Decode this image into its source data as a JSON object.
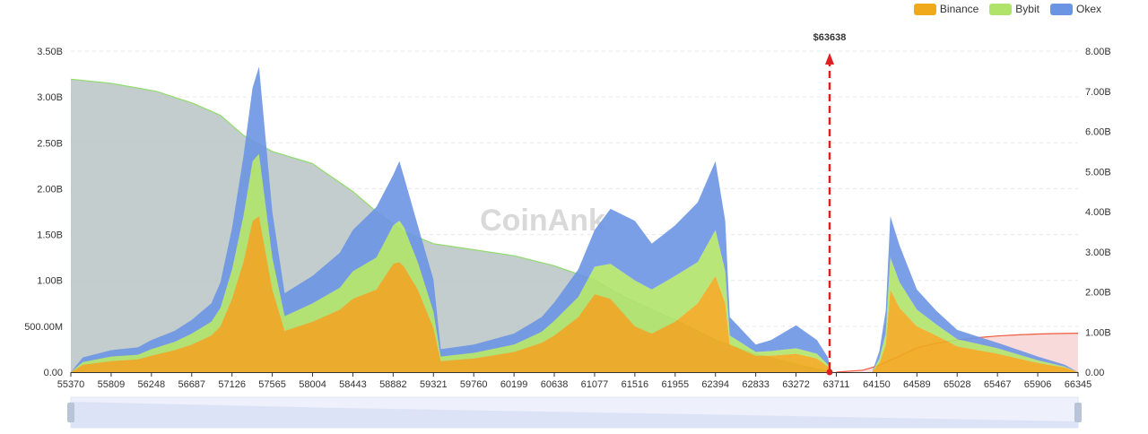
{
  "legend": {
    "items": [
      {
        "label": "Binance",
        "color": "#f0a81c"
      },
      {
        "label": "Bybit",
        "color": "#b0e36a"
      },
      {
        "label": "Okex",
        "color": "#6b95e3"
      }
    ]
  },
  "watermark": "CoinAnk",
  "chart_data": {
    "type": "area",
    "x_tick_labels": [
      "55370",
      "55809",
      "56248",
      "56687",
      "57126",
      "57565",
      "58004",
      "58443",
      "58882",
      "59321",
      "59760",
      "60199",
      "60638",
      "61077",
      "61516",
      "61955",
      "62394",
      "62833",
      "63272",
      "63711",
      "64150",
      "64589",
      "65028",
      "65467",
      "65906",
      "66345"
    ],
    "xlim": [
      55370,
      66345
    ],
    "y_left_ticks": [
      "0.00",
      "500.00M",
      "1.00B",
      "1.50B",
      "2.00B",
      "2.50B",
      "3.00B",
      "3.50B"
    ],
    "y_left_range": [
      0,
      3.5
    ],
    "y_right_ticks": [
      "0.00",
      "1.00B",
      "2.00B",
      "3.00B",
      "4.00B",
      "5.00B",
      "6.00B",
      "7.00B",
      "8.00B"
    ],
    "y_right_range": [
      0,
      8
    ],
    "current_price": 63638,
    "current_price_label": "$63638",
    "series": [
      {
        "name": "Binance",
        "color": "#f0a81c",
        "x": [
          55370,
          55500,
          55809,
          56100,
          56248,
          56500,
          56687,
          56900,
          57000,
          57126,
          57250,
          57350,
          57420,
          57565,
          57700,
          58004,
          58300,
          58443,
          58700,
          58882,
          58950,
          59000,
          59150,
          59321,
          59400,
          59760,
          60199,
          60500,
          60638,
          60900,
          61077,
          61250,
          61516,
          61700,
          61955,
          62200,
          62394,
          62500,
          62550,
          62833,
          63000,
          63272,
          63500,
          63620,
          63650,
          63711,
          64100,
          64180,
          64250,
          64300,
          64400,
          64589,
          64800,
          65028,
          65467,
          65906,
          66200,
          66345
        ],
        "values": [
          0,
          0.08,
          0.12,
          0.14,
          0.18,
          0.24,
          0.3,
          0.4,
          0.5,
          0.8,
          1.2,
          1.65,
          1.7,
          0.9,
          0.45,
          0.55,
          0.68,
          0.8,
          0.9,
          1.18,
          1.2,
          1.15,
          0.9,
          0.48,
          0.12,
          0.15,
          0.22,
          0.32,
          0.4,
          0.6,
          0.85,
          0.8,
          0.5,
          0.42,
          0.55,
          0.75,
          1.05,
          0.75,
          0.3,
          0.18,
          0.18,
          0.2,
          0.15,
          0.06,
          0,
          0,
          0,
          0.1,
          0.3,
          0.9,
          0.7,
          0.5,
          0.4,
          0.28,
          0.2,
          0.1,
          0.05,
          0
        ]
      },
      {
        "name": "Bybit",
        "color": "#b0e36a",
        "x": [
          55370,
          55500,
          55809,
          56100,
          56248,
          56500,
          56687,
          56900,
          57000,
          57126,
          57250,
          57350,
          57420,
          57565,
          57700,
          58004,
          58300,
          58443,
          58700,
          58882,
          58950,
          59000,
          59150,
          59321,
          59400,
          59760,
          60199,
          60500,
          60638,
          60900,
          61077,
          61250,
          61516,
          61700,
          61955,
          62200,
          62394,
          62500,
          62550,
          62833,
          63000,
          63272,
          63500,
          63620,
          63650,
          63711,
          64100,
          64180,
          64250,
          64300,
          64400,
          64589,
          64800,
          65028,
          65467,
          65906,
          66200,
          66345
        ],
        "values": [
          0,
          0.03,
          0.05,
          0.05,
          0.07,
          0.09,
          0.12,
          0.15,
          0.2,
          0.32,
          0.5,
          0.65,
          0.68,
          0.35,
          0.16,
          0.2,
          0.24,
          0.3,
          0.35,
          0.42,
          0.45,
          0.43,
          0.3,
          0.18,
          0.05,
          0.06,
          0.08,
          0.12,
          0.16,
          0.22,
          0.3,
          0.38,
          0.5,
          0.48,
          0.5,
          0.45,
          0.5,
          0.35,
          0.1,
          0.04,
          0.05,
          0.06,
          0.05,
          0.02,
          0,
          0,
          0,
          0.05,
          0.12,
          0.35,
          0.28,
          0.18,
          0.12,
          0.08,
          0.06,
          0.03,
          0.01,
          0
        ]
      },
      {
        "name": "Okex",
        "color": "#6b95e3",
        "x": [
          55370,
          55500,
          55809,
          56100,
          56248,
          56500,
          56687,
          56900,
          57000,
          57126,
          57250,
          57350,
          57420,
          57565,
          57700,
          58004,
          58300,
          58443,
          58700,
          58882,
          58950,
          59000,
          59150,
          59321,
          59400,
          59760,
          60199,
          60500,
          60638,
          60900,
          61077,
          61250,
          61516,
          61700,
          61955,
          62200,
          62394,
          62500,
          62550,
          62833,
          63000,
          63272,
          63500,
          63620,
          63650,
          63711,
          64100,
          64180,
          64250,
          64300,
          64400,
          64589,
          64800,
          65028,
          65467,
          65906,
          66200,
          66345
        ],
        "values": [
          0,
          0.05,
          0.07,
          0.08,
          0.1,
          0.12,
          0.15,
          0.2,
          0.28,
          0.45,
          0.65,
          0.8,
          0.95,
          0.5,
          0.25,
          0.3,
          0.38,
          0.45,
          0.55,
          0.55,
          0.65,
          0.55,
          0.4,
          0.35,
          0.08,
          0.09,
          0.12,
          0.16,
          0.2,
          0.3,
          0.4,
          0.6,
          0.65,
          0.5,
          0.55,
          0.65,
          0.75,
          0.55,
          0.2,
          0.08,
          0.12,
          0.25,
          0.15,
          0.08,
          0,
          0,
          0,
          0.08,
          0.25,
          0.45,
          0.4,
          0.22,
          0.15,
          0.1,
          0.06,
          0.04,
          0.02,
          0
        ]
      },
      {
        "name": "",
        "axis": "right",
        "color": "#b7c2c2",
        "x": [
          55370,
          55800,
          56300,
          56700,
          57000,
          57250,
          57565,
          58000,
          58443,
          58700,
          59000,
          59321,
          59760,
          60199,
          60638,
          61077,
          61300,
          61516,
          61955,
          62394,
          62833,
          63272,
          63500,
          63650
        ],
        "values": [
          7.3,
          7.2,
          7.0,
          6.7,
          6.4,
          5.9,
          5.5,
          5.2,
          4.5,
          4.0,
          3.5,
          3.2,
          3.05,
          2.9,
          2.65,
          2.3,
          2.0,
          1.75,
          1.3,
          0.8,
          0.45,
          0.2,
          0.08,
          0
        ]
      },
      {
        "name": "",
        "axis": "right",
        "color": "#f4c2c2",
        "x": [
          63711,
          64000,
          64150,
          64400,
          64589,
          64800,
          65028,
          65300,
          65467,
          65700,
          65906,
          66100,
          66345
        ],
        "values": [
          0,
          0.05,
          0.15,
          0.4,
          0.6,
          0.72,
          0.8,
          0.87,
          0.9,
          0.93,
          0.95,
          0.96,
          0.97
        ]
      }
    ]
  }
}
